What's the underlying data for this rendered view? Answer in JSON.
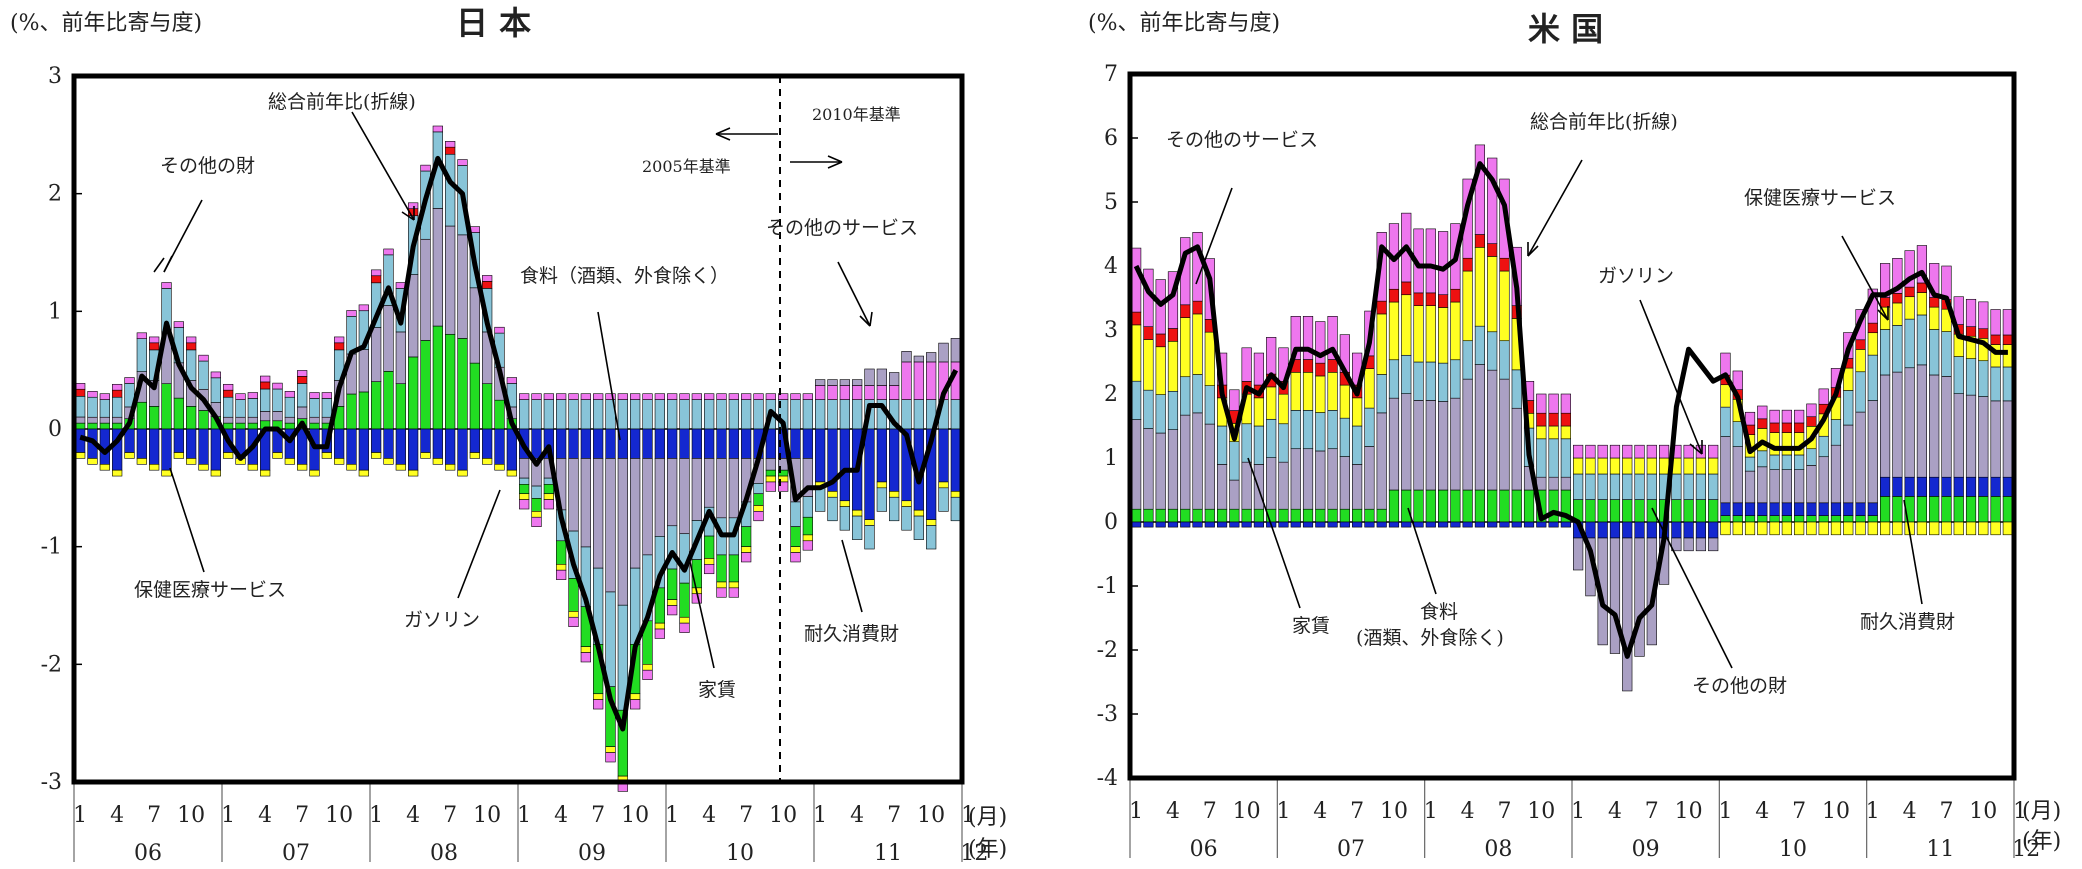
{
  "legend_colors": {
    "other_services": "#ee77ee",
    "health_services": "#ffff22",
    "rent": "#ee1111",
    "gasoline": "#aaa0c4",
    "durable_goods": "#1428d0",
    "food": "#22dd22",
    "other_goods": "#88c4d8"
  },
  "chart_data": [
    {
      "type": "bar",
      "title": "日 本",
      "ylabel": "(%、前年比寄与度)",
      "ylim": [
        -3,
        3
      ],
      "yticks": [
        "3",
        "2",
        "1",
        "0",
        "-1",
        "-2",
        "-3"
      ],
      "month_ticks": [
        "1",
        "4",
        "7",
        "10",
        "1",
        "4",
        "7",
        "10",
        "1",
        "4",
        "7",
        "10",
        "1",
        "4",
        "7",
        "10",
        "1",
        "4",
        "7",
        "10",
        "1",
        "4",
        "7",
        "10",
        "1"
      ],
      "year_labels": [
        "06",
        "07",
        "08",
        "09",
        "10",
        "11",
        "12"
      ],
      "month_unit": "(月)",
      "year_unit": "(年)",
      "annotations": {
        "headline": "総合前年比(折線)",
        "other_goods": "その他の財",
        "food": "食料（酒類、外食除く）",
        "other_services": "その他のサービス",
        "health": "保健医療サービス",
        "gasoline": "ガソリン",
        "rent": "家賃",
        "durable": "耐久消費財",
        "base2005": "2005年基準",
        "base2010": "2010年基準"
      },
      "series_line": [
        -0.07,
        -0.1,
        -0.2,
        -0.1,
        0.05,
        0.45,
        0.35,
        0.9,
        0.55,
        0.35,
        0.25,
        0.1,
        -0.1,
        -0.25,
        -0.15,
        -0.0,
        0.0,
        -0.1,
        0.05,
        -0.15,
        -0.15,
        0.35,
        0.65,
        0.7,
        0.95,
        1.2,
        0.9,
        1.55,
        1.95,
        2.3,
        2.1,
        2.0,
        1.4,
        0.9,
        0.5,
        0.05,
        -0.15,
        -0.3,
        -0.15,
        -0.75,
        -1.15,
        -1.45,
        -1.85,
        -2.3,
        -2.55,
        -1.85,
        -1.6,
        -1.25,
        -1.05,
        -1.2,
        -0.95,
        -0.7,
        -0.9,
        -0.9,
        -0.6,
        -0.25,
        0.15,
        0.05,
        -0.6,
        -0.5,
        -0.5,
        -0.45,
        -0.35,
        -0.35,
        0.2,
        0.2,
        0.05,
        -0.05,
        -0.45,
        -0.1,
        0.3,
        0.5
      ]
    },
    {
      "type": "bar",
      "title": "米 国",
      "ylabel": "(%、前年比寄与度)",
      "ylim": [
        -4,
        7
      ],
      "yticks": [
        "7",
        "6",
        "5",
        "4",
        "3",
        "2",
        "1",
        "0",
        "-1",
        "-2",
        "-3",
        "-4"
      ],
      "month_ticks": [
        "1",
        "4",
        "7",
        "10",
        "1",
        "4",
        "7",
        "10",
        "1",
        "4",
        "7",
        "10",
        "1",
        "4",
        "7",
        "10",
        "1",
        "4",
        "7",
        "10",
        "1",
        "4",
        "7",
        "10",
        "1"
      ],
      "year_labels": [
        "06",
        "07",
        "08",
        "09",
        "10",
        "11",
        "12"
      ],
      "month_unit": "(月)",
      "year_unit": "(年)",
      "annotations": {
        "headline": "総合前年比(折線)",
        "other_services": "その他のサービス",
        "gasoline": "ガソリン",
        "health": "保健医療サービス",
        "rent": "家賃",
        "food": "食料\n(酒類、外食除く)",
        "other_goods": "その他の財",
        "durable": "耐久消費財"
      },
      "series_line": [
        4.0,
        3.6,
        3.4,
        3.55,
        4.2,
        4.3,
        3.8,
        2.0,
        1.3,
        2.1,
        2.0,
        2.3,
        2.1,
        2.7,
        2.7,
        2.6,
        2.7,
        2.35,
        2.0,
        2.8,
        4.3,
        4.1,
        4.3,
        4.0,
        4.0,
        3.95,
        4.1,
        4.95,
        5.6,
        5.35,
        4.95,
        3.65,
        1.05,
        0.05,
        0.15,
        0.1,
        0.0,
        -0.45,
        -1.3,
        -1.45,
        -2.1,
        -1.5,
        -1.3,
        -0.25,
        1.8,
        2.7,
        2.45,
        2.2,
        2.3,
        1.95,
        1.1,
        1.25,
        1.15,
        1.15,
        1.15,
        1.3,
        1.6,
        2.0,
        2.7,
        3.15,
        3.55,
        3.55,
        3.65,
        3.8,
        3.9,
        3.55,
        3.5,
        2.9,
        2.85,
        2.8,
        2.65,
        2.65
      ]
    }
  ]
}
